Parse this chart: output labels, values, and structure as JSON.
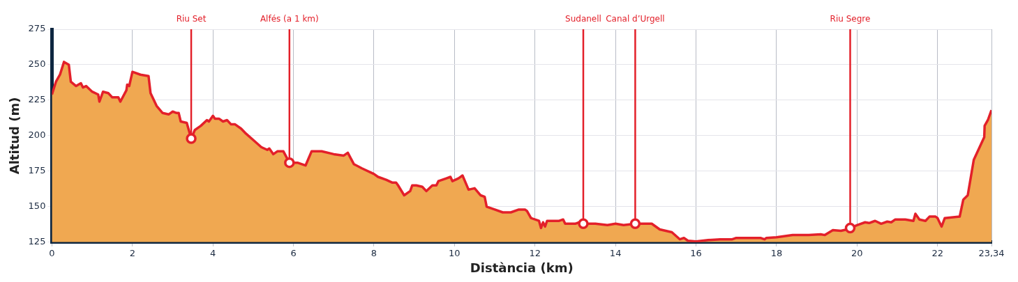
{
  "chart_data": {
    "type": "area",
    "xlabel": "Distància (km)",
    "ylabel": "Altitud (m)",
    "xlim": [
      0,
      23.34
    ],
    "ylim": [
      125,
      275
    ],
    "xticks": [
      0,
      2,
      4,
      6,
      8,
      10,
      12,
      14,
      16,
      18,
      20,
      22,
      {
        "value": 23.34,
        "label": "23,34"
      }
    ],
    "yticks": [
      125,
      150,
      175,
      200,
      225,
      250,
      275
    ],
    "grid": true,
    "legend": false,
    "series": [
      {
        "color": "#e3202a",
        "x": [
          0,
          0.1,
          0.2,
          0.3,
          0.42,
          0.47,
          0.6,
          0.72,
          0.77,
          0.85,
          1.0,
          1.15,
          1.18,
          1.27,
          1.4,
          1.5,
          1.65,
          1.7,
          1.85,
          1.87,
          1.92,
          2.0,
          2.2,
          2.4,
          2.45,
          2.6,
          2.75,
          2.9,
          3.0,
          3.1,
          3.15,
          3.2,
          3.35,
          3.46,
          3.55,
          3.7,
          3.85,
          3.9,
          4.0,
          4.05,
          4.15,
          4.25,
          4.35,
          4.45,
          4.55,
          4.7,
          4.8,
          5.0,
          5.2,
          5.35,
          5.4,
          5.5,
          5.6,
          5.75,
          5.9,
          6.1,
          6.3,
          6.45,
          6.7,
          7.0,
          7.25,
          7.35,
          7.5,
          7.7,
          8.0,
          8.1,
          8.3,
          8.45,
          8.55,
          8.6,
          8.75,
          8.9,
          8.95,
          9.05,
          9.2,
          9.3,
          9.45,
          9.55,
          9.6,
          9.8,
          9.9,
          9.95,
          10.1,
          10.2,
          10.35,
          10.5,
          10.65,
          10.75,
          10.8,
          11.0,
          11.2,
          11.4,
          11.6,
          11.75,
          11.8,
          11.9,
          12.1,
          12.15,
          12.2,
          12.25,
          12.3,
          12.6,
          12.7,
          12.75,
          13.0,
          13.1,
          13.2,
          13.5,
          13.8,
          14.0,
          14.2,
          14.5,
          14.9,
          15.1,
          15.4,
          15.6,
          15.7,
          15.8,
          16.0,
          16.3,
          16.6,
          16.9,
          17.0,
          17.2,
          17.6,
          17.7,
          17.75,
          18.0,
          18.4,
          18.8,
          19.1,
          19.2,
          19.4,
          19.6,
          19.75,
          19.83,
          20.0,
          20.2,
          20.3,
          20.4,
          20.45,
          20.6,
          20.75,
          20.85,
          20.95,
          21.2,
          21.4,
          21.45,
          21.55,
          21.7,
          21.8,
          21.95,
          22.0,
          22.1,
          22.18,
          22.55,
          22.64,
          22.75,
          22.9,
          23.16,
          23.17,
          23.25,
          23.34
        ],
        "values": [
          229,
          238,
          243,
          252,
          250,
          238,
          235,
          237,
          234,
          235,
          231,
          229,
          224,
          231,
          230,
          227,
          227,
          224,
          232,
          236,
          235,
          245,
          243,
          242,
          230,
          221,
          216,
          215,
          217,
          216,
          216,
          210,
          209,
          198,
          204,
          207,
          211,
          210,
          214,
          212,
          212,
          210,
          211,
          208,
          208,
          205,
          202,
          197,
          192,
          190,
          191,
          187,
          189,
          189,
          181,
          181,
          179,
          189,
          189,
          187,
          186,
          188,
          180,
          177,
          173,
          171,
          169,
          167,
          167,
          165,
          158,
          161,
          165,
          165,
          164,
          161,
          165,
          165,
          168,
          170,
          171,
          168,
          170,
          172,
          162,
          163,
          158,
          157,
          150,
          148,
          146,
          146,
          148,
          148,
          147,
          142,
          140,
          135,
          139,
          136,
          140,
          140,
          141,
          138,
          138,
          139,
          138,
          138,
          137,
          138,
          137,
          138,
          138,
          134,
          132,
          127,
          128,
          126,
          125.5,
          126.5,
          127,
          127,
          128,
          128,
          128,
          127,
          128,
          128.5,
          130,
          130,
          130.5,
          130,
          133.5,
          133,
          134,
          135,
          137,
          139,
          138.5,
          139.5,
          140,
          138,
          139.5,
          139,
          141,
          141,
          140,
          145,
          141,
          140,
          143,
          143,
          142,
          136,
          142,
          143,
          155,
          158,
          183,
          199,
          207,
          211,
          218
        ]
      }
    ],
    "annotations": [
      {
        "text": "Riu Set",
        "x": 3.46,
        "y": 198
      },
      {
        "text": "Alfés (a 1 km)",
        "x": 5.9,
        "y": 181
      },
      {
        "text": "Sudanell",
        "x": 13.2,
        "y": 138
      },
      {
        "text": "Canal d’Urgell",
        "x": 14.49,
        "y": 138
      },
      {
        "text": "Riu Segre",
        "x": 19.83,
        "y": 135
      }
    ]
  }
}
